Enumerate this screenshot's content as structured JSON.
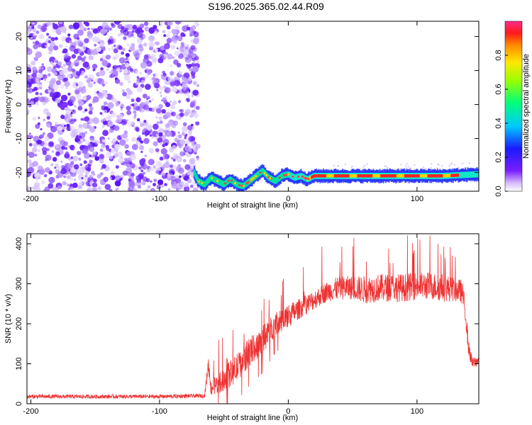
{
  "figure_title": "S196.2025.365.02.44.R09",
  "chart_data": [
    {
      "type": "heatmap",
      "title": "S196.2025.365.02.44.R09",
      "xlabel": "Height of straight line (km)",
      "ylabel": "Frequency (Hz)",
      "xlim": [
        -203,
        148
      ],
      "ylim": [
        -25.5,
        24.5
      ],
      "xticks": [
        -200,
        -100,
        0,
        100
      ],
      "yticks": [
        20,
        10,
        0,
        -10,
        -20
      ],
      "description_ridge": {
        "x": [
          -73,
          -70,
          -65,
          -60,
          -55,
          -50,
          -45,
          -40,
          -35,
          -30,
          -25,
          -20,
          -15,
          -10,
          -5,
          0,
          5,
          10,
          15,
          20,
          30,
          40,
          60,
          80,
          100,
          120,
          148
        ],
        "freq": [
          -20,
          -22.5,
          -23.5,
          -21.5,
          -22.5,
          -23.5,
          -22,
          -23.5,
          -24,
          -22.5,
          -21,
          -19.5,
          -21.5,
          -22.5,
          -21,
          -20.5,
          -21.5,
          -21,
          -22,
          -21,
          -21,
          -21,
          -21,
          -21,
          -21,
          -21,
          -20.5
        ]
      },
      "noise_region_x": [
        -203,
        -70
      ],
      "colorbar": {
        "label": "Normalized spectral amplitude",
        "ticks": [
          0.0,
          0.2,
          0.4,
          0.6,
          0.8
        ],
        "tick_labels": [
          "0.0",
          "0.2",
          "0.4",
          "0.6",
          "0.8"
        ],
        "range": [
          0,
          1
        ]
      }
    },
    {
      "type": "line",
      "xlabel": "Height of straight line (km)",
      "ylabel": "SNR (10 * v/v)",
      "xlim": [
        -203,
        148
      ],
      "ylim": [
        0,
        425
      ],
      "xticks": [
        -200,
        -100,
        0,
        100
      ],
      "yticks": [
        0,
        100,
        200,
        300,
        400
      ],
      "series": [
        {
          "name": "SNR",
          "color": "#ee3333",
          "envelope_x": [
            -203,
            -150,
            -100,
            -65,
            -62,
            -60,
            -50,
            -40,
            -30,
            -20,
            -10,
            0,
            10,
            20,
            30,
            40,
            50,
            60,
            70,
            80,
            90,
            100,
            110,
            120,
            130,
            135,
            138,
            140,
            143,
            148
          ],
          "envelope_baseline": [
            18,
            18,
            18,
            20,
            100,
            40,
            60,
            90,
            130,
            160,
            200,
            220,
            240,
            260,
            280,
            290,
            290,
            285,
            290,
            290,
            290,
            295,
            295,
            290,
            285,
            280,
            220,
            140,
            100,
            110
          ],
          "envelope_spread": [
            10,
            10,
            10,
            10,
            40,
            40,
            60,
            70,
            70,
            70,
            60,
            60,
            50,
            50,
            50,
            60,
            60,
            70,
            70,
            70,
            70,
            70,
            70,
            70,
            60,
            60,
            60,
            40,
            30,
            30
          ]
        }
      ]
    }
  ]
}
